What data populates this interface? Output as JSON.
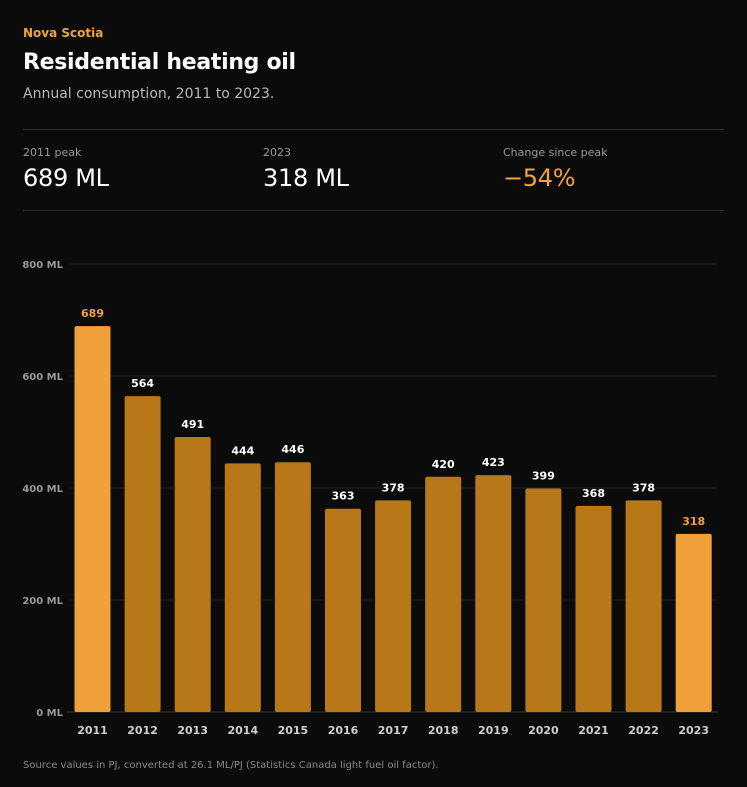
{
  "header": {
    "eyebrow": "Nova Scotia",
    "title": "Residential heating oil",
    "subtitle": "Annual consumption, 2011 to 2023."
  },
  "stats": [
    {
      "label": "2011 peak",
      "value": "689 ML"
    },
    {
      "label": "2023",
      "value": "318 ML"
    },
    {
      "label": "Change since peak",
      "value": "−54%"
    }
  ],
  "colors": {
    "highlight": "#f0a03a",
    "bar": "#b97818",
    "accent_text": "#f0a140",
    "background": "#0b0b0b"
  },
  "chart_data": {
    "type": "bar",
    "categories": [
      "2011",
      "2012",
      "2013",
      "2014",
      "2015",
      "2016",
      "2017",
      "2018",
      "2019",
      "2020",
      "2021",
      "2022",
      "2023"
    ],
    "values": [
      689,
      564,
      491,
      444,
      446,
      363,
      378,
      420,
      423,
      399,
      368,
      378,
      318
    ],
    "highlighted": [
      "2011",
      "2023"
    ],
    "ylim": [
      0,
      800
    ],
    "yticks": [
      0,
      200,
      400,
      600,
      800
    ],
    "ytick_labels": [
      "0 ML",
      "200 ML",
      "400 ML",
      "600 ML",
      "800 ML"
    ],
    "unit": "ML",
    "grid": true,
    "data_labels": true
  },
  "footer": {
    "note": "Source values in PJ, converted at 26.1 ML/PJ (Statistics Canada light fuel oil factor)."
  }
}
